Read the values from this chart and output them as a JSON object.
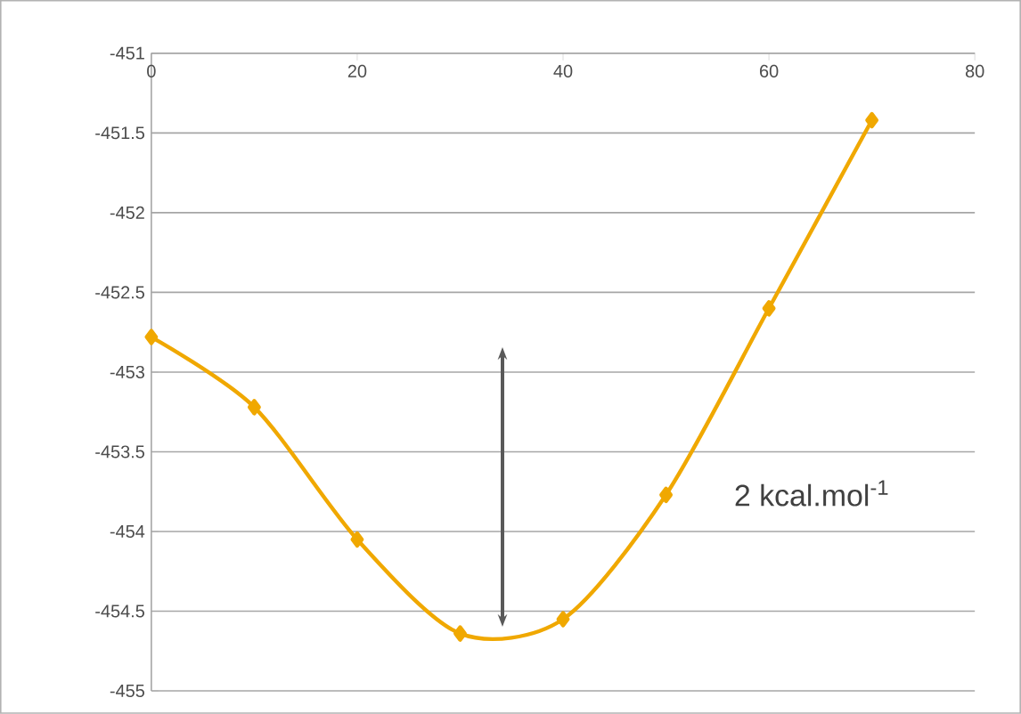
{
  "chart_data": {
    "type": "line",
    "x": [
      0,
      10,
      20,
      30,
      40,
      50,
      60,
      70
    ],
    "series": [
      {
        "color": "#f0a800",
        "values": [
          -452.78,
          -453.22,
          -454.05,
          -454.64,
          -454.55,
          -453.77,
          -452.6,
          -451.42
        ]
      }
    ],
    "xlim": [
      0,
      80
    ],
    "ylim": [
      -455,
      -451
    ],
    "xticks": [
      0,
      20,
      40,
      60,
      80
    ],
    "yticks": [
      -455,
      -454.5,
      -454,
      -453.5,
      -453,
      -452.5,
      -452,
      -451.5,
      -451
    ],
    "grid": "y",
    "marker": "diamond",
    "annotations": [
      "2 kcal.mol$^{-1}$"
    ]
  }
}
